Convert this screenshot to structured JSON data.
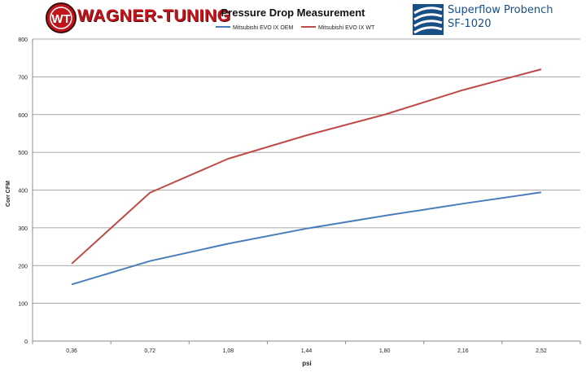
{
  "header": {
    "brand_logo": "wagner-tuning-logo",
    "brand_name": "WAGNER-TUNING",
    "brand_monogram": "WT",
    "bench_logo": "superflow-logo",
    "bench_line1": "Superflow Probench",
    "bench_line2": "SF-1020"
  },
  "colors": {
    "oem": "#4a7ebb",
    "wt": "#be4b48",
    "brand_red": "#c0151b",
    "bench_blue": "#1a4f86",
    "grid": "#8c8c8c"
  },
  "chart_data": {
    "type": "line",
    "title": "Pressure Drop Measurement",
    "xlabel": "psi",
    "ylabel": "Corr CFM",
    "categories": [
      "0,36",
      "0,72",
      "1,08",
      "1,44",
      "1,80",
      "2,16",
      "2,52"
    ],
    "ylim": [
      0,
      800
    ],
    "yticks": [
      0,
      100,
      200,
      300,
      400,
      500,
      600,
      700,
      800
    ],
    "grid": true,
    "legend_position": "top-center",
    "series": [
      {
        "name": "Mitsubishi EVO IX OEM",
        "color": "#4a7ebb",
        "values": [
          150,
          212,
          258,
          298,
          332,
          364,
          394
        ]
      },
      {
        "name": "Mitsubishi EVO IX WT",
        "color": "#be4b48",
        "values": [
          205,
          393,
          483,
          545,
          600,
          665,
          720
        ]
      }
    ]
  }
}
